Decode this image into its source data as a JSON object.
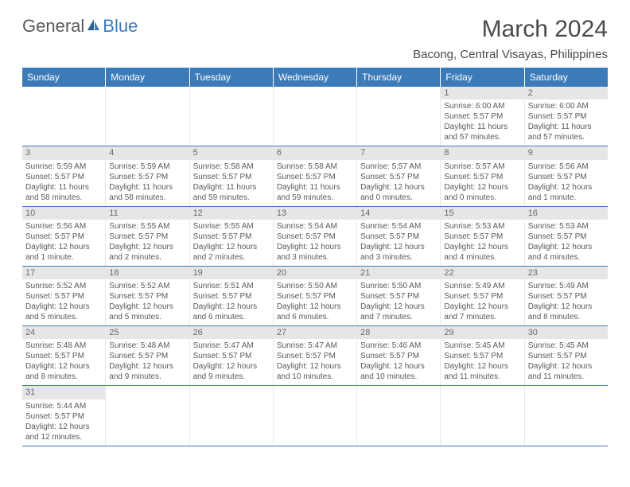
{
  "logo": {
    "text1": "General",
    "text2": "Blue"
  },
  "title": "March 2024",
  "location": "Bacong, Central Visayas, Philippines",
  "day_names": [
    "Sunday",
    "Monday",
    "Tuesday",
    "Wednesday",
    "Thursday",
    "Friday",
    "Saturday"
  ],
  "colors": {
    "header_bg": "#3d7ab8",
    "header_fg": "#ffffff",
    "daynum_bg": "#e6e6e6",
    "text": "#5a5a5a",
    "week_border": "#3d7ab8"
  },
  "weeks": [
    [
      null,
      null,
      null,
      null,
      null,
      {
        "n": "1",
        "sr": "Sunrise: 6:00 AM",
        "ss": "Sunset: 5:57 PM",
        "dl1": "Daylight: 11 hours",
        "dl2": "and 57 minutes."
      },
      {
        "n": "2",
        "sr": "Sunrise: 6:00 AM",
        "ss": "Sunset: 5:57 PM",
        "dl1": "Daylight: 11 hours",
        "dl2": "and 57 minutes."
      }
    ],
    [
      {
        "n": "3",
        "sr": "Sunrise: 5:59 AM",
        "ss": "Sunset: 5:57 PM",
        "dl1": "Daylight: 11 hours",
        "dl2": "and 58 minutes."
      },
      {
        "n": "4",
        "sr": "Sunrise: 5:59 AM",
        "ss": "Sunset: 5:57 PM",
        "dl1": "Daylight: 11 hours",
        "dl2": "and 58 minutes."
      },
      {
        "n": "5",
        "sr": "Sunrise: 5:58 AM",
        "ss": "Sunset: 5:57 PM",
        "dl1": "Daylight: 11 hours",
        "dl2": "and 59 minutes."
      },
      {
        "n": "6",
        "sr": "Sunrise: 5:58 AM",
        "ss": "Sunset: 5:57 PM",
        "dl1": "Daylight: 11 hours",
        "dl2": "and 59 minutes."
      },
      {
        "n": "7",
        "sr": "Sunrise: 5:57 AM",
        "ss": "Sunset: 5:57 PM",
        "dl1": "Daylight: 12 hours",
        "dl2": "and 0 minutes."
      },
      {
        "n": "8",
        "sr": "Sunrise: 5:57 AM",
        "ss": "Sunset: 5:57 PM",
        "dl1": "Daylight: 12 hours",
        "dl2": "and 0 minutes."
      },
      {
        "n": "9",
        "sr": "Sunrise: 5:56 AM",
        "ss": "Sunset: 5:57 PM",
        "dl1": "Daylight: 12 hours",
        "dl2": "and 1 minute."
      }
    ],
    [
      {
        "n": "10",
        "sr": "Sunrise: 5:56 AM",
        "ss": "Sunset: 5:57 PM",
        "dl1": "Daylight: 12 hours",
        "dl2": "and 1 minute."
      },
      {
        "n": "11",
        "sr": "Sunrise: 5:55 AM",
        "ss": "Sunset: 5:57 PM",
        "dl1": "Daylight: 12 hours",
        "dl2": "and 2 minutes."
      },
      {
        "n": "12",
        "sr": "Sunrise: 5:55 AM",
        "ss": "Sunset: 5:57 PM",
        "dl1": "Daylight: 12 hours",
        "dl2": "and 2 minutes."
      },
      {
        "n": "13",
        "sr": "Sunrise: 5:54 AM",
        "ss": "Sunset: 5:57 PM",
        "dl1": "Daylight: 12 hours",
        "dl2": "and 3 minutes."
      },
      {
        "n": "14",
        "sr": "Sunrise: 5:54 AM",
        "ss": "Sunset: 5:57 PM",
        "dl1": "Daylight: 12 hours",
        "dl2": "and 3 minutes."
      },
      {
        "n": "15",
        "sr": "Sunrise: 5:53 AM",
        "ss": "Sunset: 5:57 PM",
        "dl1": "Daylight: 12 hours",
        "dl2": "and 4 minutes."
      },
      {
        "n": "16",
        "sr": "Sunrise: 5:53 AM",
        "ss": "Sunset: 5:57 PM",
        "dl1": "Daylight: 12 hours",
        "dl2": "and 4 minutes."
      }
    ],
    [
      {
        "n": "17",
        "sr": "Sunrise: 5:52 AM",
        "ss": "Sunset: 5:57 PM",
        "dl1": "Daylight: 12 hours",
        "dl2": "and 5 minutes."
      },
      {
        "n": "18",
        "sr": "Sunrise: 5:52 AM",
        "ss": "Sunset: 5:57 PM",
        "dl1": "Daylight: 12 hours",
        "dl2": "and 5 minutes."
      },
      {
        "n": "19",
        "sr": "Sunrise: 5:51 AM",
        "ss": "Sunset: 5:57 PM",
        "dl1": "Daylight: 12 hours",
        "dl2": "and 6 minutes."
      },
      {
        "n": "20",
        "sr": "Sunrise: 5:50 AM",
        "ss": "Sunset: 5:57 PM",
        "dl1": "Daylight: 12 hours",
        "dl2": "and 6 minutes."
      },
      {
        "n": "21",
        "sr": "Sunrise: 5:50 AM",
        "ss": "Sunset: 5:57 PM",
        "dl1": "Daylight: 12 hours",
        "dl2": "and 7 minutes."
      },
      {
        "n": "22",
        "sr": "Sunrise: 5:49 AM",
        "ss": "Sunset: 5:57 PM",
        "dl1": "Daylight: 12 hours",
        "dl2": "and 7 minutes."
      },
      {
        "n": "23",
        "sr": "Sunrise: 5:49 AM",
        "ss": "Sunset: 5:57 PM",
        "dl1": "Daylight: 12 hours",
        "dl2": "and 8 minutes."
      }
    ],
    [
      {
        "n": "24",
        "sr": "Sunrise: 5:48 AM",
        "ss": "Sunset: 5:57 PM",
        "dl1": "Daylight: 12 hours",
        "dl2": "and 8 minutes."
      },
      {
        "n": "25",
        "sr": "Sunrise: 5:48 AM",
        "ss": "Sunset: 5:57 PM",
        "dl1": "Daylight: 12 hours",
        "dl2": "and 9 minutes."
      },
      {
        "n": "26",
        "sr": "Sunrise: 5:47 AM",
        "ss": "Sunset: 5:57 PM",
        "dl1": "Daylight: 12 hours",
        "dl2": "and 9 minutes."
      },
      {
        "n": "27",
        "sr": "Sunrise: 5:47 AM",
        "ss": "Sunset: 5:57 PM",
        "dl1": "Daylight: 12 hours",
        "dl2": "and 10 minutes."
      },
      {
        "n": "28",
        "sr": "Sunrise: 5:46 AM",
        "ss": "Sunset: 5:57 PM",
        "dl1": "Daylight: 12 hours",
        "dl2": "and 10 minutes."
      },
      {
        "n": "29",
        "sr": "Sunrise: 5:45 AM",
        "ss": "Sunset: 5:57 PM",
        "dl1": "Daylight: 12 hours",
        "dl2": "and 11 minutes."
      },
      {
        "n": "30",
        "sr": "Sunrise: 5:45 AM",
        "ss": "Sunset: 5:57 PM",
        "dl1": "Daylight: 12 hours",
        "dl2": "and 11 minutes."
      }
    ],
    [
      {
        "n": "31",
        "sr": "Sunrise: 5:44 AM",
        "ss": "Sunset: 5:57 PM",
        "dl1": "Daylight: 12 hours",
        "dl2": "and 12 minutes."
      },
      null,
      null,
      null,
      null,
      null,
      null
    ]
  ]
}
